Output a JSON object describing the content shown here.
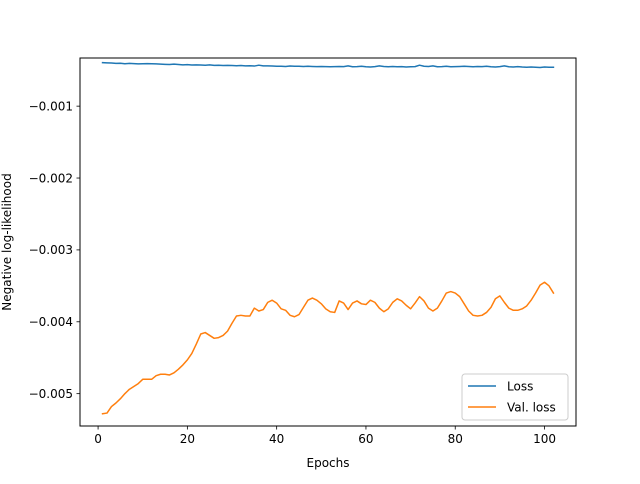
{
  "chart_data": {
    "type": "line",
    "title": "",
    "xlabel": "Epochs",
    "ylabel": "Negative log-likelihood",
    "xlim": [
      -4.05,
      107.05
    ],
    "ylim": [
      -0.00545,
      -0.00033
    ],
    "grid": false,
    "legend_position": "lower right",
    "x_ticks": [
      0,
      20,
      40,
      60,
      80,
      100
    ],
    "x_tick_labels": [
      "0",
      "20",
      "40",
      "60",
      "80",
      "100"
    ],
    "y_ticks": [
      -0.005,
      -0.004,
      -0.003,
      -0.002,
      -0.001
    ],
    "y_tick_labels": [
      "−0.005",
      "−0.004",
      "−0.003",
      "−0.002",
      "−0.001"
    ],
    "series": [
      {
        "name": "Loss",
        "color": "#1f77b4",
        "x": [
          1,
          2,
          3,
          4,
          5,
          6,
          7,
          8,
          9,
          10,
          11,
          12,
          13,
          14,
          15,
          16,
          17,
          18,
          19,
          20,
          21,
          22,
          23,
          24,
          25,
          26,
          27,
          28,
          29,
          30,
          31,
          32,
          33,
          34,
          35,
          36,
          37,
          38,
          39,
          40,
          41,
          42,
          43,
          44,
          45,
          46,
          47,
          48,
          49,
          50,
          51,
          52,
          53,
          54,
          55,
          56,
          57,
          58,
          59,
          60,
          61,
          62,
          63,
          64,
          65,
          66,
          67,
          68,
          69,
          70,
          71,
          72,
          73,
          74,
          75,
          76,
          77,
          78,
          79,
          80,
          81,
          82,
          83,
          84,
          85,
          86,
          87,
          88,
          89,
          90,
          91,
          92,
          93,
          94,
          95,
          96,
          97,
          98,
          99,
          100,
          101,
          102
        ],
        "values": [
          -0.000395,
          -0.000398,
          -0.0004,
          -0.000405,
          -0.000403,
          -0.00041,
          -0.000405,
          -0.000408,
          -0.000412,
          -0.00041,
          -0.000408,
          -0.00041,
          -0.000412,
          -0.000415,
          -0.000418,
          -0.00042,
          -0.000415,
          -0.00042,
          -0.000425,
          -0.000422,
          -0.000428,
          -0.000425,
          -0.000428,
          -0.00043,
          -0.000425,
          -0.000432,
          -0.00043,
          -0.000435,
          -0.000432,
          -0.000435,
          -0.000438,
          -0.000435,
          -0.00044,
          -0.000438,
          -0.000442,
          -0.00043,
          -0.00044,
          -0.00044,
          -0.000442,
          -0.000445,
          -0.000445,
          -0.000448,
          -0.000442,
          -0.000445,
          -0.000445,
          -0.000448,
          -0.000445,
          -0.000448,
          -0.00045,
          -0.000448,
          -0.00045,
          -0.000452,
          -0.00045,
          -0.000448,
          -0.00045,
          -0.00044,
          -0.000452,
          -0.00045,
          -0.000445,
          -0.000452,
          -0.000455,
          -0.00045,
          -0.00044,
          -0.000448,
          -0.000452,
          -0.000448,
          -0.000452,
          -0.00045,
          -0.000455,
          -0.000452,
          -0.00045,
          -0.00043,
          -0.000445,
          -0.000448,
          -0.00044,
          -0.000452,
          -0.00045,
          -0.000445,
          -0.000452,
          -0.00045,
          -0.000448,
          -0.000445,
          -0.000448,
          -0.000452,
          -0.000448,
          -0.00045,
          -0.000445,
          -0.000452,
          -0.000455,
          -0.00045,
          -0.00044,
          -0.000452,
          -0.000455,
          -0.00045,
          -0.000455,
          -0.000458,
          -0.000455,
          -0.000458,
          -0.000462,
          -0.000455,
          -0.000458,
          -0.000458
        ]
      },
      {
        "name": "Val. loss",
        "color": "#ff7f0e",
        "x": [
          1,
          2,
          3,
          4,
          5,
          6,
          7,
          8,
          9,
          10,
          11,
          12,
          13,
          14,
          15,
          16,
          17,
          18,
          19,
          20,
          21,
          22,
          23,
          24,
          25,
          26,
          27,
          28,
          29,
          30,
          31,
          32,
          33,
          34,
          35,
          36,
          37,
          38,
          39,
          40,
          41,
          42,
          43,
          44,
          45,
          46,
          47,
          48,
          49,
          50,
          51,
          52,
          53,
          54,
          55,
          56,
          57,
          58,
          59,
          60,
          61,
          62,
          63,
          64,
          65,
          66,
          67,
          68,
          69,
          70,
          71,
          72,
          73,
          74,
          75,
          76,
          77,
          78,
          79,
          80,
          81,
          82,
          83,
          84,
          85,
          86,
          87,
          88,
          89,
          90,
          91,
          92,
          93,
          94,
          95,
          96,
          97,
          98,
          99,
          100,
          101,
          102
        ],
        "values": [
          -0.00528,
          -0.00527,
          -0.00518,
          -0.00513,
          -0.00507,
          -0.005,
          -0.00494,
          -0.0049,
          -0.00486,
          -0.0048,
          -0.0048,
          -0.0048,
          -0.00475,
          -0.00473,
          -0.00473,
          -0.00474,
          -0.00471,
          -0.00466,
          -0.0046,
          -0.00453,
          -0.00444,
          -0.00431,
          -0.00417,
          -0.00415,
          -0.00419,
          -0.00423,
          -0.00422,
          -0.00419,
          -0.00413,
          -0.00402,
          -0.00392,
          -0.00391,
          -0.00392,
          -0.00392,
          -0.00381,
          -0.00385,
          -0.00383,
          -0.00373,
          -0.0037,
          -0.00374,
          -0.00382,
          -0.00384,
          -0.00391,
          -0.00393,
          -0.0039,
          -0.0038,
          -0.0037,
          -0.00367,
          -0.0037,
          -0.00375,
          -0.00382,
          -0.00386,
          -0.00387,
          -0.00371,
          -0.00374,
          -0.00383,
          -0.00374,
          -0.00371,
          -0.00375,
          -0.00376,
          -0.0037,
          -0.00373,
          -0.00381,
          -0.00386,
          -0.00382,
          -0.00373,
          -0.00368,
          -0.00371,
          -0.00377,
          -0.00382,
          -0.00374,
          -0.00365,
          -0.00371,
          -0.00381,
          -0.00385,
          -0.00381,
          -0.00371,
          -0.0036,
          -0.00358,
          -0.0036,
          -0.00365,
          -0.00375,
          -0.00385,
          -0.00391,
          -0.00392,
          -0.00391,
          -0.00387,
          -0.0038,
          -0.00368,
          -0.00364,
          -0.00373,
          -0.00381,
          -0.00384,
          -0.00384,
          -0.00382,
          -0.00378,
          -0.0037,
          -0.0036,
          -0.00349,
          -0.00345,
          -0.0035,
          -0.0036
        ]
      }
    ]
  }
}
